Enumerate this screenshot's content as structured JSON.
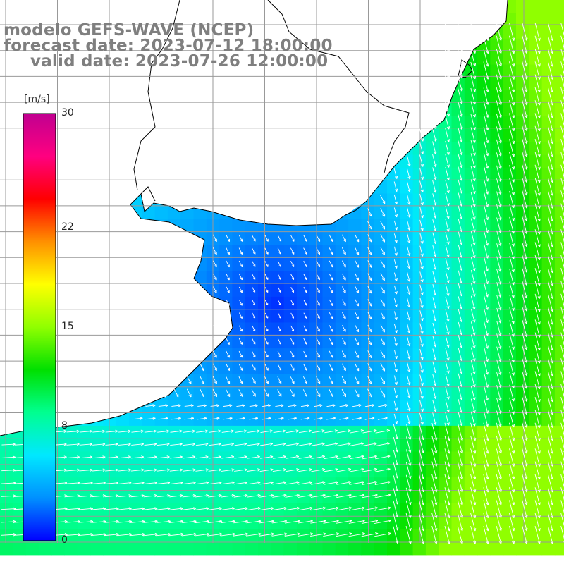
{
  "title": {
    "model": "modelo GEFS-WAVE (NCEP)",
    "forecast": "forecast date: 2023-07-12 18:00:00",
    "valid": "valid date: 2023-07-26 12:00:00"
  },
  "colorbar": {
    "unit": "[m/s]",
    "min": 0,
    "max": 30,
    "ticks": [
      "30",
      "22",
      "15",
      "8",
      "0"
    ],
    "tick_values": [
      30,
      22,
      15,
      8,
      0
    ],
    "colors": [
      "#0000ff",
      "#0090ff",
      "#00e8ff",
      "#00ff90",
      "#00e000",
      "#90ff00",
      "#ffff00",
      "#ff9000",
      "#ff0000",
      "#ff0080",
      "#c00090"
    ]
  },
  "map": {
    "land_color": "#ffffff",
    "coast_color": "#000000",
    "grid_color": "#999999",
    "arrow_color": "#ffffff",
    "grid": true
  }
}
